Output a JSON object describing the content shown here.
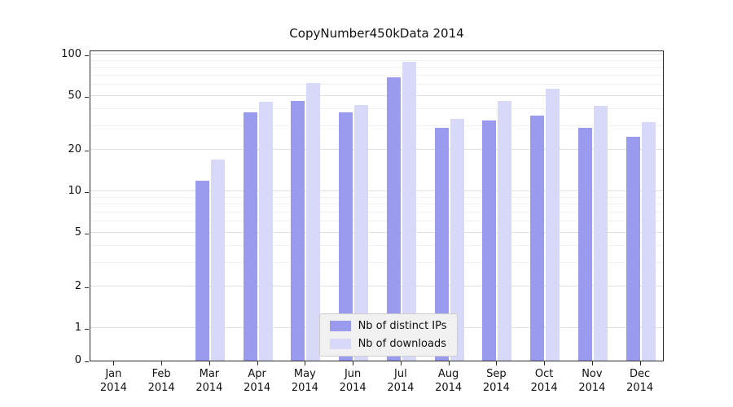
{
  "chart_data": {
    "type": "bar",
    "title": "CopyNumber450kData 2014",
    "year": "2014",
    "categories": [
      "Jan",
      "Feb",
      "Mar",
      "Apr",
      "May",
      "Jun",
      "Jul",
      "Aug",
      "Sep",
      "Oct",
      "Nov",
      "Dec"
    ],
    "series": [
      {
        "name": "Nb of distinct IPs",
        "color": "#9a9aee",
        "values": [
          0,
          0,
          12,
          38,
          46,
          38,
          68,
          29,
          33,
          36,
          29,
          25
        ]
      },
      {
        "name": "Nb of downloads",
        "color": "#d8d8f8",
        "values": [
          0,
          0,
          17,
          45,
          62,
          43,
          88,
          34,
          46,
          56,
          42,
          32
        ]
      }
    ],
    "y_ticks": [
      0,
      1,
      2,
      5,
      10,
      20,
      50,
      100
    ],
    "y_minor_ticks": [
      3,
      4,
      6,
      7,
      8,
      9,
      30,
      40,
      60,
      70,
      80,
      90
    ],
    "scale": "log",
    "ylim": [
      0,
      100
    ],
    "grid": true,
    "legend_position": "bottom-center"
  }
}
